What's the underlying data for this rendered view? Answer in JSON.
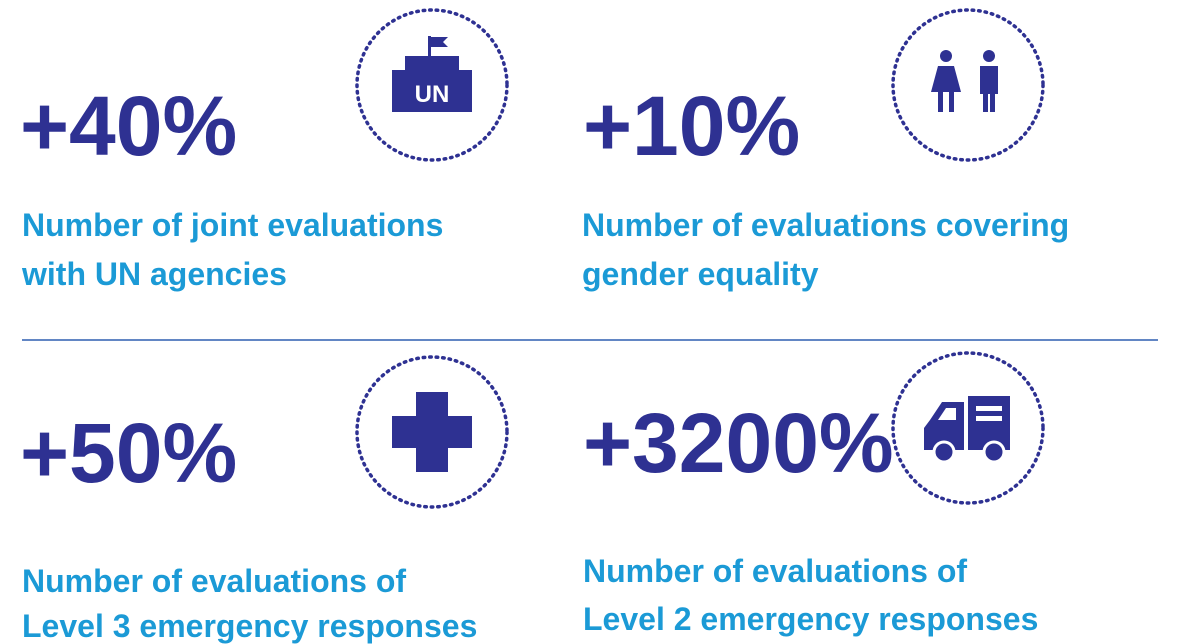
{
  "stats": [
    {
      "value": "+40%",
      "description": [
        "Number of joint evaluations",
        "with UN agencies"
      ],
      "icon_label": "UN"
    },
    {
      "value": "+10%",
      "description": [
        "Number of evaluations covering",
        "gender equality"
      ]
    },
    {
      "value": "+50%",
      "description": [
        "Number of evaluations of",
        "Level 3 emergency responses"
      ]
    },
    {
      "value": "+3200%",
      "description": [
        "Number of evaluations of",
        "Level 2 emergency responses"
      ]
    }
  ]
}
